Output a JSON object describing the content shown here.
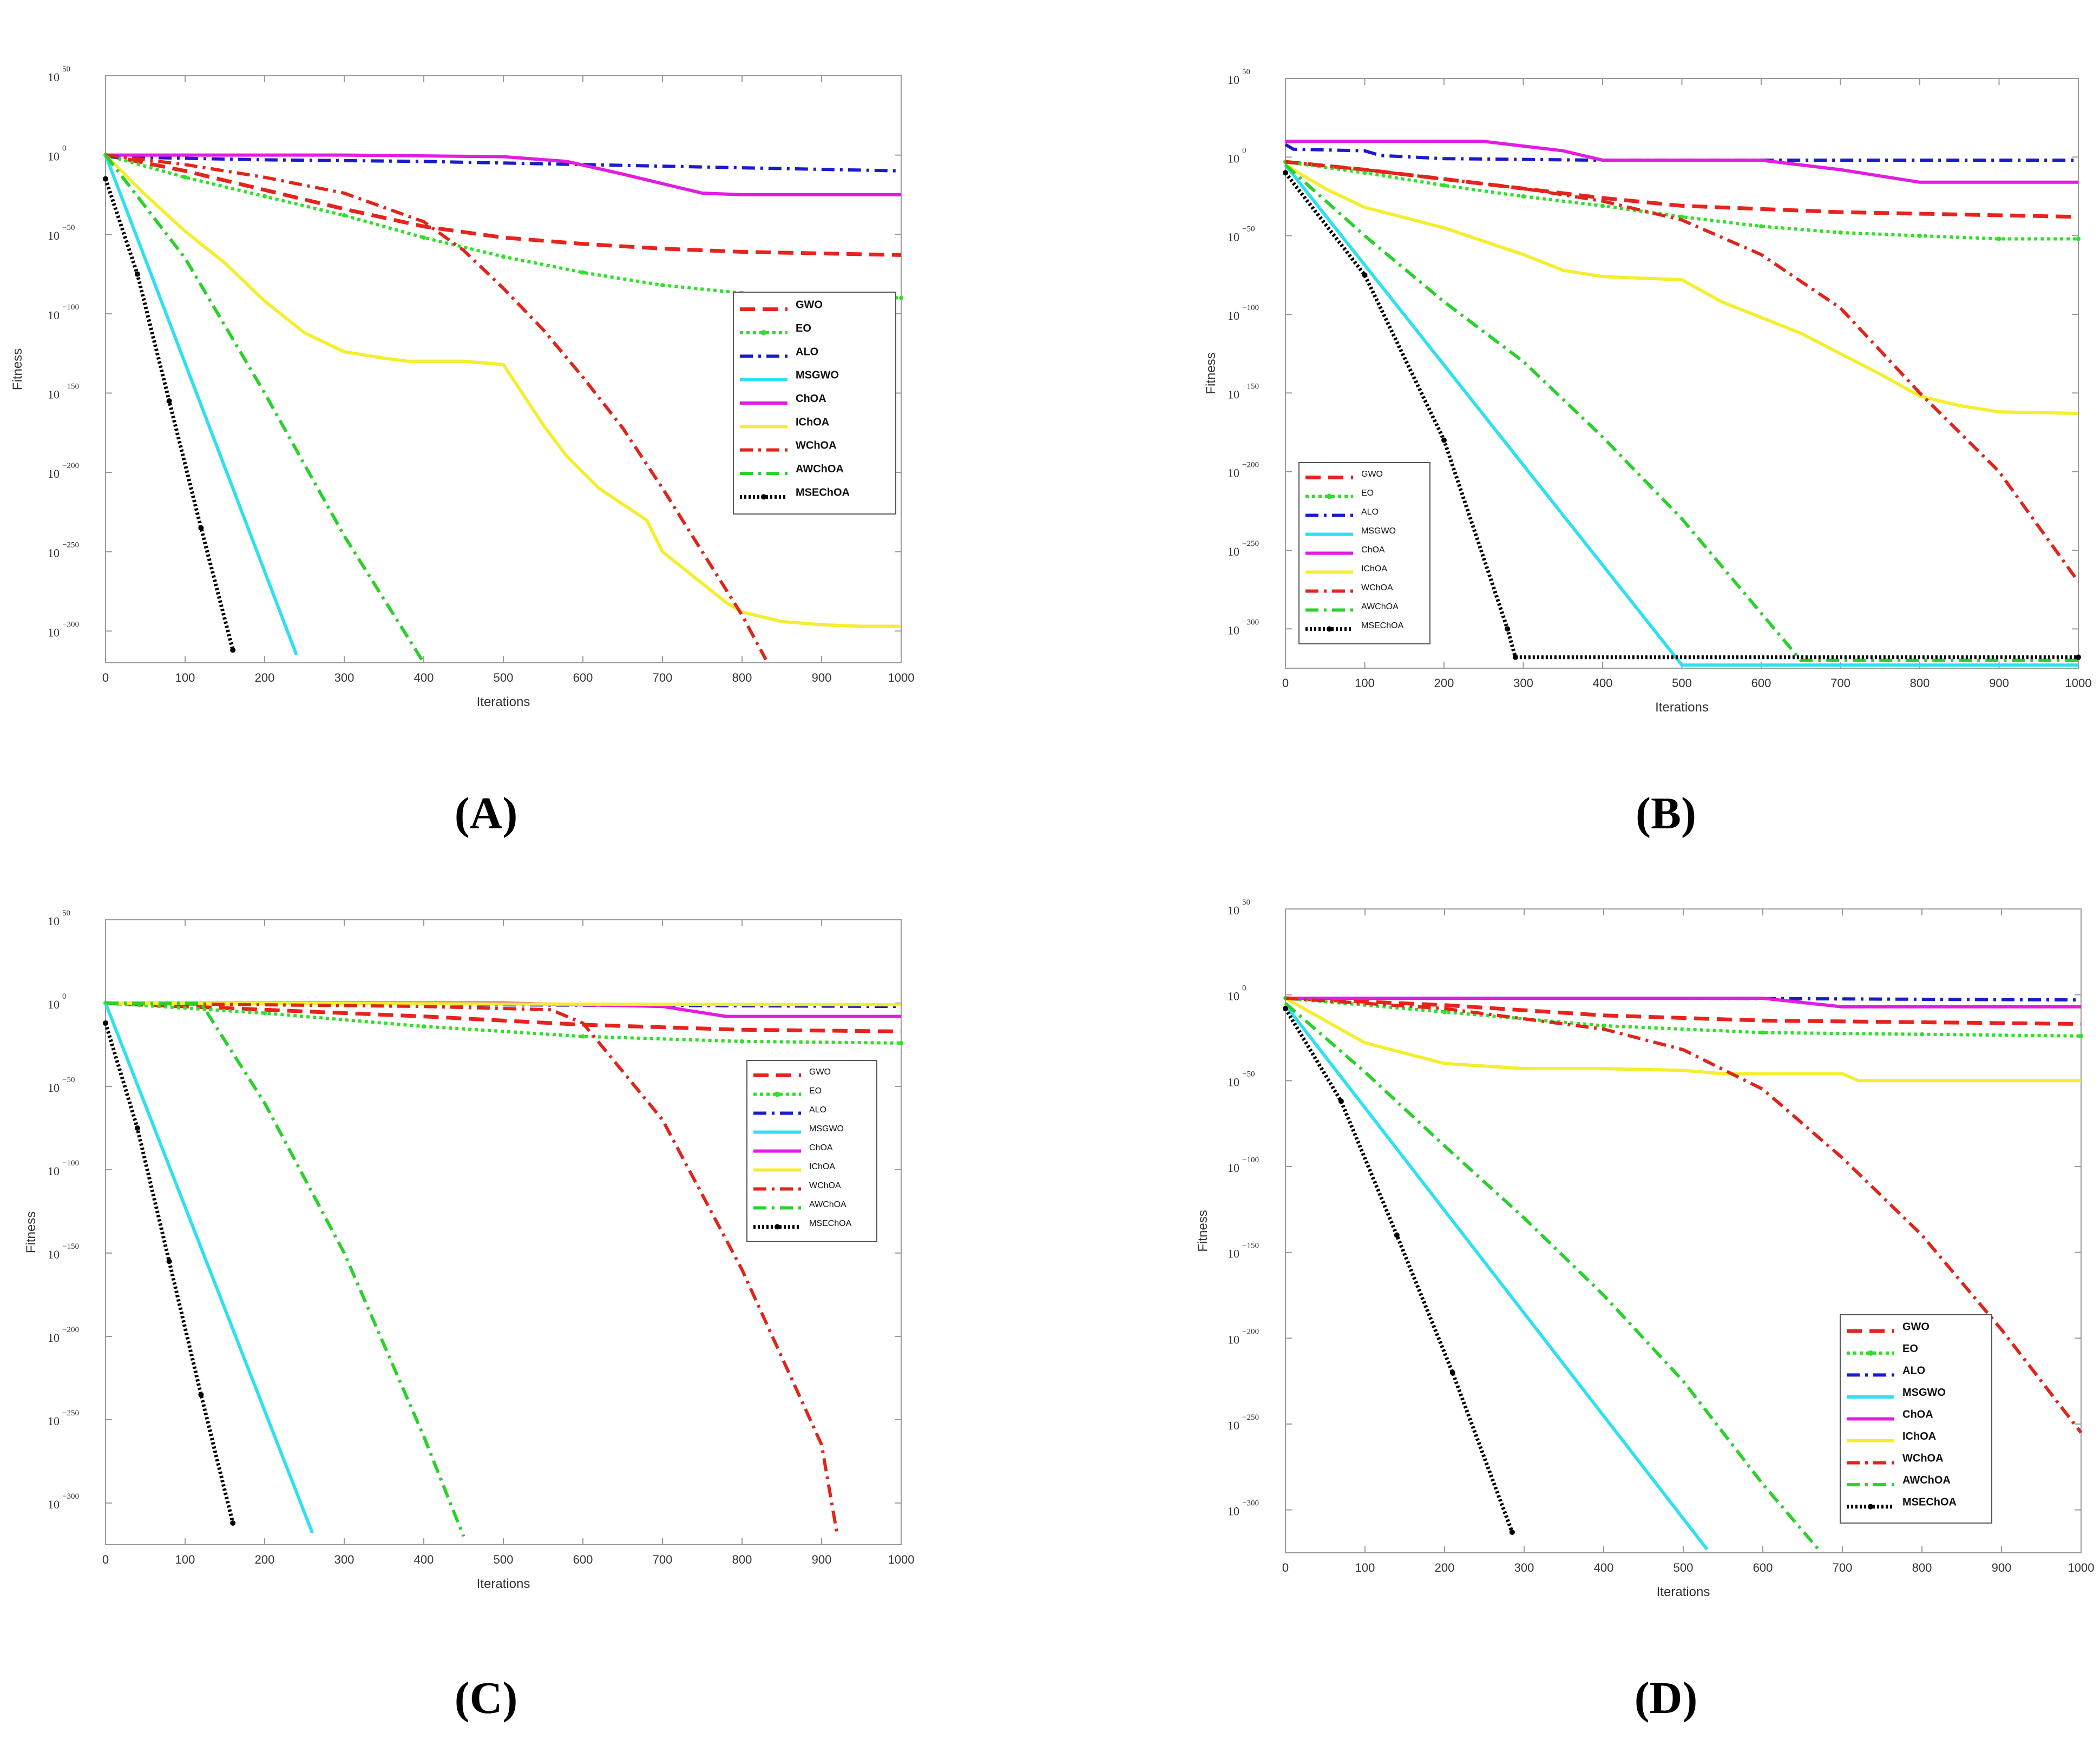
{
  "colors": {
    "GWO": "#e8231d",
    "EO": "#2ee026",
    "ALO": "#1a1ccc",
    "MSGWO": "#2fe0f0",
    "ChOA": "#e01de0",
    "IChOA": "#f5ee2e",
    "WChOA": "#e0251b",
    "AWChOA": "#2ad12b",
    "MSEChOA": "#000000",
    "axis": "#9a9a9a",
    "text": "#333333"
  },
  "chart_data": [
    {
      "type": "line",
      "caption": "(A)",
      "xlabel": "Iterations",
      "ylabel": "Fitness",
      "xlim": [
        0,
        1000
      ],
      "ylim": [
        -320,
        50
      ],
      "xticks": [
        0,
        100,
        200,
        300,
        400,
        500,
        600,
        700,
        800,
        900,
        1000
      ],
      "yticks": [
        {
          "v": 50,
          "base": "10",
          "exp": "50"
        },
        {
          "v": 0,
          "base": "10",
          "exp": "0"
        },
        {
          "v": -50,
          "base": "10",
          "exp": "−50"
        },
        {
          "v": -100,
          "base": "10",
          "exp": "−100"
        },
        {
          "v": -150,
          "base": "10",
          "exp": "−150"
        },
        {
          "v": -200,
          "base": "10",
          "exp": "−200"
        },
        {
          "v": -250,
          "base": "10",
          "exp": "−250"
        },
        {
          "v": -300,
          "base": "10",
          "exp": "−300"
        }
      ],
      "legend_position": "right-middle",
      "legend": [
        "GWO",
        "EO",
        "ALO",
        "MSGWO",
        "ChOA",
        "IChOA",
        "WChOA",
        "AWChOA",
        "MSEChOA"
      ],
      "series": [
        {
          "name": "GWO",
          "x": [
            0,
            100,
            200,
            300,
            400,
            500,
            600,
            700,
            800,
            900,
            1000
          ],
          "y": [
            0,
            -10,
            -22,
            -34,
            -45,
            -52,
            -56,
            -59,
            -61,
            -62,
            -63
          ]
        },
        {
          "name": "EO",
          "x": [
            0,
            100,
            200,
            300,
            400,
            500,
            600,
            700,
            800,
            900,
            1000
          ],
          "y": [
            0,
            -14,
            -26,
            -38,
            -52,
            -64,
            -74,
            -82,
            -87,
            -89,
            -90
          ]
        },
        {
          "name": "ALO",
          "x": [
            0,
            200,
            400,
            600,
            800,
            1000
          ],
          "y": [
            -1,
            -3,
            -4,
            -6,
            -8,
            -10
          ]
        },
        {
          "name": "MSGWO",
          "x": [
            0,
            240
          ],
          "y": [
            0,
            -315
          ]
        },
        {
          "name": "ChOA",
          "x": [
            0,
            300,
            500,
            580,
            650,
            750,
            800,
            1000
          ],
          "y": [
            0,
            0,
            -1,
            -4,
            -12,
            -24,
            -25,
            -25
          ]
        },
        {
          "name": "IChOA",
          "x": [
            0,
            50,
            100,
            150,
            200,
            250,
            300,
            350,
            380,
            420,
            450,
            500,
            550,
            580,
            620,
            680,
            700,
            750,
            780,
            800,
            850,
            900,
            950,
            1000
          ],
          "y": [
            0,
            -25,
            -48,
            -68,
            -92,
            -112,
            -124,
            -128,
            -130,
            -130,
            -130,
            -132,
            -170,
            -190,
            -210,
            -230,
            -250,
            -270,
            -282,
            -288,
            -294,
            -296,
            -297,
            -297
          ]
        },
        {
          "name": "WChOA",
          "x": [
            0,
            100,
            200,
            300,
            400,
            450,
            500,
            550,
            600,
            650,
            700,
            750,
            800,
            830
          ],
          "y": [
            0,
            -6,
            -14,
            -24,
            -42,
            -60,
            -84,
            -110,
            -140,
            -172,
            -210,
            -250,
            -290,
            -318
          ]
        },
        {
          "name": "AWChOA",
          "x": [
            0,
            100,
            200,
            300,
            350,
            400
          ],
          "y": [
            0,
            -65,
            -150,
            -240,
            -280,
            -320
          ]
        },
        {
          "name": "MSEChOA",
          "x": [
            0,
            40,
            80,
            120,
            160
          ],
          "y": [
            -15,
            -75,
            -155,
            -235,
            -312
          ]
        }
      ]
    },
    {
      "type": "line",
      "caption": "(B)",
      "xlabel": "Iterations",
      "ylabel": "Fitness",
      "xlim": [
        0,
        1000
      ],
      "ylim": [
        -325,
        50
      ],
      "xticks": [
        0,
        100,
        200,
        300,
        400,
        500,
        600,
        700,
        800,
        900,
        1000
      ],
      "yticks": [
        {
          "v": 50,
          "base": "10",
          "exp": "50"
        },
        {
          "v": 0,
          "base": "10",
          "exp": "0"
        },
        {
          "v": -50,
          "base": "10",
          "exp": "−50"
        },
        {
          "v": -100,
          "base": "10",
          "exp": "−100"
        },
        {
          "v": -150,
          "base": "10",
          "exp": "−150"
        },
        {
          "v": -200,
          "base": "10",
          "exp": "−200"
        },
        {
          "v": -250,
          "base": "10",
          "exp": "−250"
        },
        {
          "v": -300,
          "base": "10",
          "exp": "−300"
        }
      ],
      "legend_position": "left-bottom",
      "legend": [
        "GWO",
        "EO",
        "ALO",
        "MSGWO",
        "ChOA",
        "IChOA",
        "WChOA",
        "AWChOA",
        "MSEChOA"
      ],
      "series": [
        {
          "name": "GWO",
          "x": [
            0,
            100,
            200,
            300,
            400,
            500,
            600,
            700,
            800,
            900,
            1000
          ],
          "y": [
            -3,
            -8,
            -14,
            -20,
            -26,
            -31,
            -33,
            -35,
            -36,
            -37,
            -38
          ]
        },
        {
          "name": "EO",
          "x": [
            0,
            100,
            200,
            300,
            400,
            500,
            600,
            700,
            800,
            900,
            1000
          ],
          "y": [
            -3,
            -10,
            -18,
            -25,
            -31,
            -38,
            -44,
            -48,
            -50,
            -52,
            -52
          ]
        },
        {
          "name": "ALO",
          "x": [
            0,
            10,
            100,
            120,
            200,
            400,
            1000
          ],
          "y": [
            8,
            5,
            4,
            1,
            -1,
            -2,
            -2
          ]
        },
        {
          "name": "MSGWO",
          "x": [
            0,
            500,
            1000
          ],
          "y": [
            -5,
            -323,
            -323
          ]
        },
        {
          "name": "ChOA",
          "x": [
            0,
            100,
            250,
            350,
            400,
            600,
            700,
            800,
            1000
          ],
          "y": [
            10,
            10,
            10,
            4,
            -2,
            -2,
            -8,
            -16,
            -16
          ]
        },
        {
          "name": "IChOA",
          "x": [
            0,
            50,
            100,
            200,
            300,
            350,
            400,
            500,
            550,
            650,
            750,
            800,
            850,
            900,
            1000
          ],
          "y": [
            -5,
            -20,
            -32,
            -45,
            -62,
            -72,
            -76,
            -78,
            -92,
            -112,
            -138,
            -152,
            -158,
            -162,
            -163
          ]
        },
        {
          "name": "WChOA",
          "x": [
            0,
            100,
            200,
            300,
            400,
            500,
            600,
            700,
            800,
            900,
            1000
          ],
          "y": [
            -3,
            -8,
            -14,
            -20,
            -28,
            -40,
            -62,
            -96,
            -150,
            -200,
            -270
          ]
        },
        {
          "name": "AWChOA",
          "x": [
            0,
            100,
            200,
            300,
            400,
            500,
            600,
            650,
            1000
          ],
          "y": [
            -5,
            -50,
            -92,
            -130,
            -178,
            -230,
            -290,
            -320,
            -320
          ]
        },
        {
          "name": "MSEChOA",
          "x": [
            0,
            100,
            200,
            280,
            290,
            1000
          ],
          "y": [
            -10,
            -75,
            -180,
            -300,
            -318,
            -318
          ]
        }
      ]
    },
    {
      "type": "line",
      "caption": "(C)",
      "xlabel": "Iterations",
      "ylabel": "Fitness",
      "xlim": [
        0,
        1000
      ],
      "ylim": [
        -325,
        50
      ],
      "xticks": [
        0,
        100,
        200,
        300,
        400,
        500,
        600,
        700,
        800,
        900,
        1000
      ],
      "yticks": [
        {
          "v": 50,
          "base": "10",
          "exp": "50"
        },
        {
          "v": 0,
          "base": "10",
          "exp": "0"
        },
        {
          "v": -50,
          "base": "10",
          "exp": "−50"
        },
        {
          "v": -100,
          "base": "10",
          "exp": "−100"
        },
        {
          "v": -150,
          "base": "10",
          "exp": "−150"
        },
        {
          "v": -200,
          "base": "10",
          "exp": "−200"
        },
        {
          "v": -250,
          "base": "10",
          "exp": "−250"
        },
        {
          "v": -300,
          "base": "10",
          "exp": "−300"
        }
      ],
      "legend_position": "right-upper",
      "legend": [
        "GWO",
        "EO",
        "ALO",
        "MSGWO",
        "ChOA",
        "IChOA",
        "WChOA",
        "AWChOA",
        "MSEChOA"
      ],
      "series": [
        {
          "name": "GWO",
          "x": [
            0,
            200,
            400,
            600,
            800,
            1000
          ],
          "y": [
            0,
            -4,
            -8,
            -13,
            -16,
            -17
          ]
        },
        {
          "name": "EO",
          "x": [
            0,
            200,
            400,
            600,
            800,
            1000
          ],
          "y": [
            0,
            -6,
            -14,
            -20,
            -23,
            -24
          ]
        },
        {
          "name": "ALO",
          "x": [
            0,
            500,
            1000
          ],
          "y": [
            0,
            -1,
            -2
          ]
        },
        {
          "name": "MSGWO",
          "x": [
            0,
            260
          ],
          "y": [
            0,
            -318
          ]
        },
        {
          "name": "ChOA",
          "x": [
            0,
            500,
            700,
            780,
            1000
          ],
          "y": [
            0,
            0,
            -2,
            -8,
            -8
          ]
        },
        {
          "name": "IChOA",
          "x": [
            0,
            1000
          ],
          "y": [
            0,
            -1
          ]
        },
        {
          "name": "WChOA",
          "x": [
            0,
            400,
            560,
            600,
            700,
            800,
            900,
            920
          ],
          "y": [
            0,
            -2,
            -4,
            -12,
            -70,
            -160,
            -265,
            -320
          ]
        },
        {
          "name": "AWChOA",
          "x": [
            0,
            120,
            200,
            300,
            400,
            450
          ],
          "y": [
            0,
            0,
            -60,
            -150,
            -260,
            -320
          ]
        },
        {
          "name": "MSEChOA",
          "x": [
            0,
            40,
            80,
            120,
            160
          ],
          "y": [
            -12,
            -75,
            -155,
            -235,
            -312
          ]
        }
      ]
    },
    {
      "type": "line",
      "caption": "(D)",
      "xlabel": "Iterations",
      "ylabel": "Fitness",
      "xlim": [
        0,
        1000
      ],
      "ylim": [
        -325,
        50
      ],
      "xticks": [
        0,
        100,
        200,
        300,
        400,
        500,
        600,
        700,
        800,
        900,
        1000
      ],
      "yticks": [
        {
          "v": 50,
          "base": "10",
          "exp": "50"
        },
        {
          "v": 0,
          "base": "10",
          "exp": "0"
        },
        {
          "v": -50,
          "base": "10",
          "exp": "−50"
        },
        {
          "v": -100,
          "base": "10",
          "exp": "−100"
        },
        {
          "v": -150,
          "base": "10",
          "exp": "−150"
        },
        {
          "v": -200,
          "base": "10",
          "exp": "−200"
        },
        {
          "v": -250,
          "base": "10",
          "exp": "−250"
        },
        {
          "v": -300,
          "base": "10",
          "exp": "−300"
        }
      ],
      "legend_position": "right-bottom",
      "legend": [
        "GWO",
        "EO",
        "ALO",
        "MSGWO",
        "ChOA",
        "IChOA",
        "WChOA",
        "AWChOA",
        "MSEChOA"
      ],
      "series": [
        {
          "name": "GWO",
          "x": [
            0,
            200,
            400,
            600,
            800,
            1000
          ],
          "y": [
            -2,
            -6,
            -12,
            -15,
            -16,
            -17
          ]
        },
        {
          "name": "EO",
          "x": [
            0,
            200,
            400,
            600,
            800,
            1000
          ],
          "y": [
            -2,
            -10,
            -18,
            -22,
            -23,
            -24
          ]
        },
        {
          "name": "ALO",
          "x": [
            0,
            500,
            1000
          ],
          "y": [
            -2,
            -2,
            -3
          ]
        },
        {
          "name": "MSGWO",
          "x": [
            0,
            530
          ],
          "y": [
            -6,
            -323
          ]
        },
        {
          "name": "ChOA",
          "x": [
            0,
            600,
            700,
            1000
          ],
          "y": [
            -2,
            -2,
            -7,
            -7
          ]
        },
        {
          "name": "IChOA",
          "x": [
            0,
            50,
            100,
            200,
            300,
            400,
            500,
            550,
            700,
            720,
            1000
          ],
          "y": [
            -2,
            -15,
            -28,
            -40,
            -43,
            -43,
            -44,
            -46,
            -46,
            -50,
            -50
          ]
        },
        {
          "name": "WChOA",
          "x": [
            0,
            200,
            400,
            500,
            600,
            700,
            800,
            900,
            1000
          ],
          "y": [
            -2,
            -8,
            -20,
            -32,
            -55,
            -95,
            -140,
            -195,
            -255
          ]
        },
        {
          "name": "AWChOA",
          "x": [
            0,
            100,
            200,
            300,
            400,
            500,
            600,
            670
          ],
          "y": [
            -5,
            -45,
            -88,
            -130,
            -175,
            -225,
            -285,
            -323
          ]
        },
        {
          "name": "MSEChOA",
          "x": [
            0,
            70,
            140,
            210,
            285
          ],
          "y": [
            -8,
            -62,
            -140,
            -220,
            -313
          ]
        }
      ]
    }
  ]
}
